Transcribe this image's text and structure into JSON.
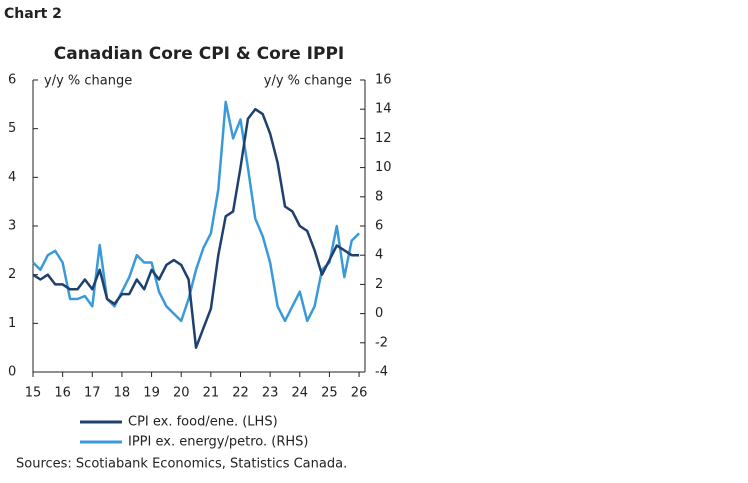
{
  "chart_data": {
    "type": "line",
    "chart_label": "Chart 2",
    "title": "Canadian Core CPI & Core IPPI",
    "ylabel": "y/y % change",
    "y2label": "y/y % change",
    "source": "Sources: Scotiabank Economics, Statistics Canada.",
    "x": [
      15,
      15.25,
      15.5,
      15.75,
      16,
      16.25,
      16.5,
      16.75,
      17,
      17.25,
      17.5,
      17.75,
      18,
      18.25,
      18.5,
      18.75,
      19,
      19.25,
      19.5,
      19.75,
      20,
      20.25,
      20.5,
      20.75,
      21,
      21.25,
      21.5,
      21.75,
      22,
      22.25,
      22.5,
      22.75,
      23,
      23.25,
      23.5,
      23.75,
      24,
      24.25,
      24.5,
      24.75,
      25,
      25.25,
      25.5,
      25.75,
      26
    ],
    "series": [
      {
        "name": "CPI ex. food/ene. (LHS)",
        "color": "#1f3f6e",
        "axis": "y",
        "values": [
          2.0,
          1.9,
          2.0,
          1.8,
          1.8,
          1.7,
          1.7,
          1.9,
          1.7,
          2.1,
          1.5,
          1.4,
          1.6,
          1.6,
          1.9,
          1.7,
          2.1,
          1.9,
          2.2,
          2.3,
          2.2,
          1.9,
          0.5,
          0.9,
          1.3,
          2.4,
          3.2,
          3.3,
          4.2,
          5.2,
          5.4,
          5.3,
          4.9,
          4.3,
          3.4,
          3.3,
          3.0,
          2.9,
          2.5,
          2.0,
          2.3,
          2.6,
          2.5,
          2.4,
          2.4
        ]
      },
      {
        "name": "IPPI ex. energy/petro. (RHS)",
        "color": "#3a9ad9",
        "axis": "y2",
        "values": [
          3.5,
          3.0,
          4.0,
          4.3,
          3.5,
          1.0,
          1.0,
          1.2,
          0.5,
          4.7,
          1.0,
          0.5,
          1.5,
          2.5,
          4.0,
          3.5,
          3.5,
          1.5,
          0.5,
          0.0,
          -0.5,
          1.0,
          3.0,
          4.5,
          5.5,
          8.5,
          14.5,
          12.0,
          13.3,
          10.0,
          6.5,
          5.3,
          3.5,
          0.5,
          -0.5,
          0.5,
          1.5,
          -0.5,
          0.5,
          3.0,
          3.5,
          6.0,
          2.5,
          5.0,
          5.5
        ]
      }
    ],
    "xlim": [
      15,
      26.2
    ],
    "xticks": [
      15,
      16,
      17,
      18,
      19,
      20,
      21,
      22,
      23,
      24,
      25,
      26
    ],
    "ylim": [
      0,
      6
    ],
    "yticks": [
      0,
      1,
      2,
      3,
      4,
      5,
      6
    ],
    "y2lim": [
      -4,
      16
    ],
    "y2ticks": [
      -4,
      -2,
      0,
      2,
      4,
      6,
      8,
      10,
      12,
      14,
      16
    ]
  }
}
